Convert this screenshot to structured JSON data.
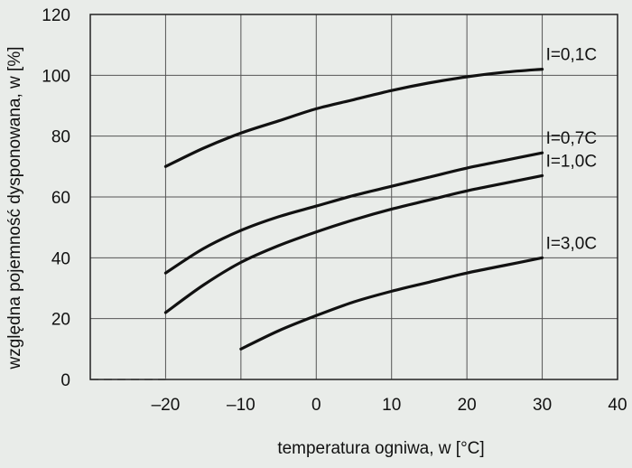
{
  "chart_data": {
    "type": "line",
    "xlabel": "temperatura ogniwa, w [°C]",
    "ylabel": "względna pojemność dysponowana, w [%]",
    "xlim": [
      -30,
      40
    ],
    "ylim": [
      0,
      120
    ],
    "x_ticks": [
      -20,
      -10,
      0,
      10,
      20,
      30,
      40
    ],
    "x_tick_labels": [
      "–20",
      "–10",
      "0",
      "10",
      "20",
      "30",
      "40"
    ],
    "y_ticks": [
      0,
      20,
      40,
      60,
      80,
      100,
      120
    ],
    "y_tick_labels": [
      "0",
      "20",
      "40",
      "60",
      "80",
      "100",
      "120"
    ],
    "grid": true,
    "series": [
      {
        "name": "I=0,1C",
        "x": [
          -20,
          -15,
          -10,
          -5,
          0,
          5,
          10,
          15,
          20,
          25,
          30
        ],
        "y": [
          70,
          76,
          81,
          85,
          89,
          92,
          95,
          97.5,
          99.5,
          101,
          102
        ]
      },
      {
        "name": "I=0,7C",
        "x": [
          -20,
          -15,
          -10,
          -5,
          0,
          5,
          10,
          15,
          20,
          25,
          30
        ],
        "y": [
          35,
          43,
          49,
          53.5,
          57,
          60.5,
          63.5,
          66.5,
          69.5,
          72,
          74.5
        ]
      },
      {
        "name": "I=1,0C",
        "x": [
          -20,
          -15,
          -10,
          -5,
          0,
          5,
          10,
          15,
          20,
          25,
          30
        ],
        "y": [
          22,
          31,
          38.5,
          44,
          48.5,
          52.5,
          56,
          59,
          62,
          64.5,
          67
        ]
      },
      {
        "name": "I=3,0C",
        "x": [
          -10,
          -5,
          0,
          5,
          10,
          15,
          20,
          25,
          30
        ],
        "y": [
          10,
          16,
          21,
          25.5,
          29,
          32,
          35,
          37.5,
          40
        ]
      }
    ]
  }
}
